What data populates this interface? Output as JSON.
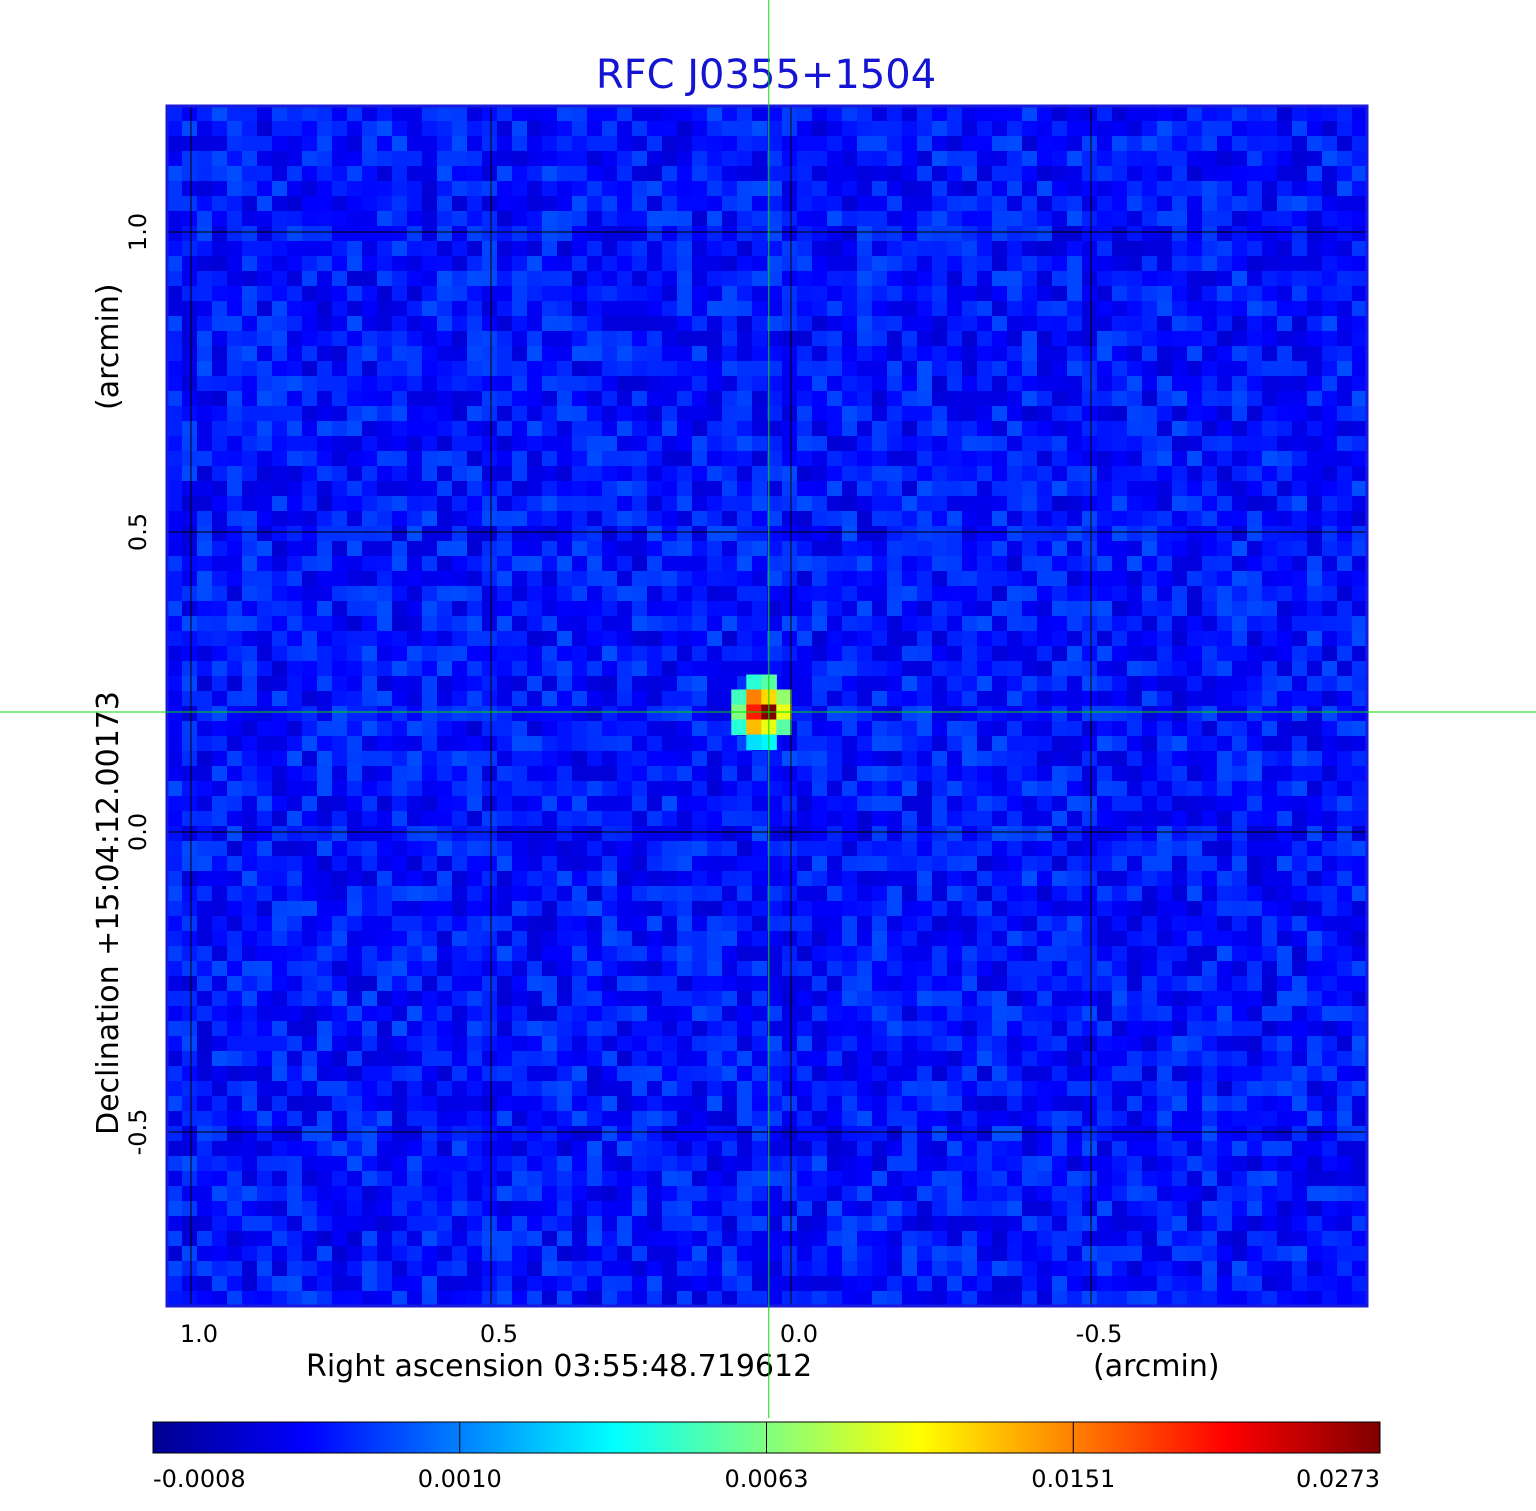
{
  "chart_data": {
    "type": "heatmap",
    "title": "RFC J0355+1504",
    "xlabel": "Right ascension  03:55:48.719612",
    "xunit": "(arcmin)",
    "ylabel": "Declination  +15:04:12.00173",
    "yunit": "(arcmin)",
    "x_range": [
      1.04,
      -0.96
    ],
    "y_range": [
      -0.79,
      1.21
    ],
    "x_ticks": [
      1.0,
      0.5,
      0.0,
      -0.5
    ],
    "x_tick_labels": [
      "1.0",
      "0.5",
      "0.0",
      "-0.5"
    ],
    "y_ticks": [
      -0.5,
      0.0,
      0.5,
      1.0
    ],
    "y_tick_labels": [
      "-0.5",
      "0.0",
      "0.5",
      "1.0"
    ],
    "grid": true,
    "crosshair": {
      "x": 0.037,
      "y": 0.2,
      "color": "#00dd00"
    },
    "source_peak": {
      "x": 0.037,
      "y": 0.2,
      "value": 0.0273
    },
    "background_level": 0.0002,
    "colormap": "jet",
    "colorbar": {
      "labels": [
        "-0.0008",
        "0.0010",
        "0.0063",
        "0.0151",
        "0.0273"
      ],
      "min": -0.0008,
      "max": 0.0273,
      "colors": [
        "#00008f",
        "#0000ff",
        "#0080ff",
        "#00ffff",
        "#80ff80",
        "#ffff00",
        "#ff8000",
        "#ff0000",
        "#800000"
      ]
    },
    "frame_color": "#1a1add",
    "title_color": "#1414d2"
  }
}
